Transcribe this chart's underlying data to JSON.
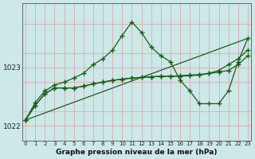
{
  "xlabel": "Graphe pression niveau de la mer (hPa)",
  "bg_color": "#cce8e8",
  "grid_color": "#ddaaaa",
  "line_color": "#1a5c1a",
  "x_ticks": [
    0,
    1,
    2,
    3,
    4,
    5,
    6,
    7,
    8,
    9,
    10,
    11,
    12,
    13,
    14,
    15,
    16,
    17,
    18,
    19,
    20,
    21,
    22,
    23
  ],
  "y_ticks": [
    1022,
    1023
  ],
  "ylim": [
    1021.75,
    1024.1
  ],
  "xlim": [
    -0.3,
    23.3
  ],
  "lines": [
    {
      "x": [
        0,
        1,
        2,
        3,
        4,
        5,
        6,
        7,
        8,
        9,
        10,
        11,
        12,
        13,
        14,
        15,
        16,
        17,
        18,
        19,
        20,
        21,
        22,
        23
      ],
      "y": [
        1022.1,
        1022.35,
        1022.55,
        1022.65,
        1022.65,
        1022.65,
        1022.68,
        1022.72,
        1022.75,
        1022.78,
        1022.8,
        1022.82,
        1022.83,
        1022.84,
        1022.85,
        1022.85,
        1022.86,
        1022.87,
        1022.88,
        1022.9,
        1022.92,
        1022.95,
        1023.05,
        1023.2
      ]
    },
    {
      "x": [
        0,
        1,
        2,
        3,
        4,
        5,
        6,
        7,
        8,
        9,
        10,
        11,
        12,
        13,
        14,
        15,
        16,
        17,
        18,
        19,
        20,
        21,
        22,
        23
      ],
      "y": [
        1022.1,
        1022.35,
        1022.55,
        1022.65,
        1022.65,
        1022.65,
        1022.68,
        1022.72,
        1022.75,
        1022.78,
        1022.8,
        1022.82,
        1022.83,
        1022.84,
        1022.85,
        1022.85,
        1022.85,
        1022.86,
        1022.87,
        1022.9,
        1022.95,
        1023.05,
        1023.15,
        1023.3
      ]
    },
    {
      "x": [
        0,
        1,
        2,
        3,
        4,
        5,
        6,
        7,
        8,
        9,
        10,
        11,
        12,
        13,
        14,
        15,
        16,
        17,
        18,
        19,
        20,
        21,
        22,
        23
      ],
      "y": [
        1022.1,
        1022.4,
        1022.6,
        1022.7,
        1022.75,
        1022.82,
        1022.9,
        1023.05,
        1023.15,
        1023.3,
        1023.55,
        1023.78,
        1023.6,
        1023.35,
        1023.2,
        1023.1,
        1022.78,
        1022.6,
        1022.38,
        1022.38,
        1022.38,
        1022.6,
        1023.1,
        1023.5
      ]
    },
    {
      "x": [
        0,
        23
      ],
      "y": [
        1022.1,
        1023.5
      ]
    }
  ]
}
